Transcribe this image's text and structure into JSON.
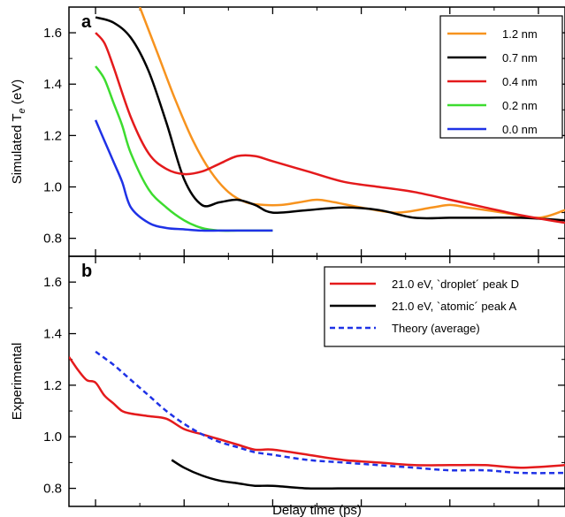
{
  "colors": {
    "orange": "#f7931e",
    "black": "#000000",
    "red": "#e41a1c",
    "green": "#3ddc2f",
    "blue": "#1f32e6",
    "dashed_blue": "#1f32e6"
  },
  "chart_data": [
    {
      "type": "line",
      "panel_label": "a",
      "ylabel": "Simulated T",
      "ylabel_sub": "e",
      "ylabel_unit": " (eV)",
      "xlim": [
        -0.15,
        2.65
      ],
      "ylim": [
        0.73,
        1.7
      ],
      "yticks": [
        "0.8",
        "1.0",
        "1.2",
        "1.4",
        "1.6"
      ],
      "ytick_values": [
        0.8,
        1.0,
        1.2,
        1.4,
        1.6
      ],
      "legend_position": "top-right",
      "series": [
        {
          "name": "1.2 nm",
          "color": "orange",
          "x": [
            0.25,
            0.35,
            0.45,
            0.55,
            0.65,
            0.75,
            0.85,
            0.95,
            1.05,
            1.15,
            1.25,
            1.35,
            1.5,
            1.7,
            1.9,
            2.0,
            2.1,
            2.3,
            2.5,
            2.65
          ],
          "y": [
            1.7,
            1.52,
            1.34,
            1.18,
            1.06,
            0.98,
            0.94,
            0.93,
            0.93,
            0.94,
            0.95,
            0.94,
            0.92,
            0.9,
            0.92,
            0.93,
            0.92,
            0.9,
            0.88,
            0.91
          ]
        },
        {
          "name": "0.7 nm",
          "color": "black",
          "x": [
            0.0,
            0.1,
            0.2,
            0.3,
            0.4,
            0.5,
            0.6,
            0.7,
            0.8,
            0.9,
            1.0,
            1.2,
            1.4,
            1.6,
            1.8,
            2.0,
            2.2,
            2.4,
            2.65
          ],
          "y": [
            1.66,
            1.64,
            1.58,
            1.45,
            1.25,
            1.03,
            0.93,
            0.94,
            0.95,
            0.93,
            0.9,
            0.91,
            0.92,
            0.91,
            0.88,
            0.88,
            0.88,
            0.88,
            0.87
          ]
        },
        {
          "name": "0.4 nm",
          "color": "red",
          "x": [
            0.0,
            0.05,
            0.1,
            0.2,
            0.3,
            0.4,
            0.5,
            0.6,
            0.7,
            0.8,
            0.9,
            1.0,
            1.2,
            1.4,
            1.6,
            1.8,
            2.0,
            2.2,
            2.4,
            2.65
          ],
          "y": [
            1.6,
            1.56,
            1.47,
            1.27,
            1.13,
            1.07,
            1.05,
            1.06,
            1.09,
            1.12,
            1.12,
            1.1,
            1.06,
            1.02,
            1.0,
            0.98,
            0.95,
            0.92,
            0.89,
            0.86
          ]
        },
        {
          "name": "0.2 nm",
          "color": "green",
          "x": [
            0.0,
            0.05,
            0.1,
            0.15,
            0.2,
            0.3,
            0.4,
            0.5,
            0.6,
            0.7,
            0.8,
            0.9,
            1.0
          ],
          "y": [
            1.47,
            1.42,
            1.33,
            1.24,
            1.13,
            0.99,
            0.92,
            0.87,
            0.84,
            0.83,
            0.83,
            0.83,
            0.83
          ]
        },
        {
          "name": "0.0 nm",
          "color": "blue",
          "x": [
            0.0,
            0.05,
            0.1,
            0.15,
            0.2,
            0.3,
            0.4,
            0.5,
            0.6,
            0.7,
            0.8,
            0.9,
            1.0
          ],
          "y": [
            1.26,
            1.18,
            1.1,
            1.02,
            0.92,
            0.86,
            0.84,
            0.835,
            0.83,
            0.83,
            0.83,
            0.83,
            0.83
          ]
        }
      ]
    },
    {
      "type": "line",
      "panel_label": "b",
      "xlabel": "Delay time (ps)",
      "ylabel": "Experimental",
      "xlim": [
        -0.15,
        2.65
      ],
      "ylim": [
        0.73,
        1.7
      ],
      "xticks": [
        "0.0",
        "0.5",
        "1.0",
        "1.5",
        "2.0",
        "2.5"
      ],
      "xtick_values": [
        0.0,
        0.5,
        1.0,
        1.5,
        2.0,
        2.5
      ],
      "yticks": [
        "0.8",
        "1.0",
        "1.2",
        "1.4",
        "1.6"
      ],
      "ytick_values": [
        0.8,
        1.0,
        1.2,
        1.4,
        1.6
      ],
      "legend_position": "top-right",
      "series": [
        {
          "name": "21.0 eV, `droplet´ peak D",
          "color": "red",
          "style": "solid",
          "x": [
            -0.15,
            -0.1,
            -0.05,
            0.0,
            0.05,
            0.1,
            0.15,
            0.2,
            0.3,
            0.4,
            0.5,
            0.6,
            0.7,
            0.8,
            0.9,
            1.0,
            1.2,
            1.4,
            1.6,
            1.8,
            2.0,
            2.2,
            2.4,
            2.65
          ],
          "y": [
            1.31,
            1.26,
            1.22,
            1.21,
            1.16,
            1.13,
            1.1,
            1.09,
            1.08,
            1.07,
            1.03,
            1.01,
            0.99,
            0.97,
            0.95,
            0.95,
            0.93,
            0.91,
            0.9,
            0.89,
            0.89,
            0.89,
            0.88,
            0.89
          ]
        },
        {
          "name": "21.0 eV, `atomic´ peak A",
          "color": "black",
          "style": "solid",
          "x": [
            0.43,
            0.5,
            0.6,
            0.7,
            0.8,
            0.9,
            1.0,
            1.2,
            1.4,
            1.6,
            1.8,
            2.0,
            2.2,
            2.4,
            2.65
          ],
          "y": [
            0.91,
            0.88,
            0.85,
            0.83,
            0.82,
            0.81,
            0.81,
            0.8,
            0.8,
            0.8,
            0.8,
            0.8,
            0.8,
            0.8,
            0.8
          ]
        },
        {
          "name": "Theory (average)",
          "color": "dashed_blue",
          "style": "dashed",
          "x": [
            0.0,
            0.1,
            0.2,
            0.3,
            0.4,
            0.5,
            0.6,
            0.7,
            0.8,
            0.9,
            1.0,
            1.2,
            1.4,
            1.6,
            1.8,
            2.0,
            2.2,
            2.4,
            2.65
          ],
          "y": [
            1.33,
            1.28,
            1.22,
            1.16,
            1.1,
            1.05,
            1.01,
            0.98,
            0.96,
            0.94,
            0.93,
            0.91,
            0.9,
            0.89,
            0.88,
            0.87,
            0.87,
            0.86,
            0.86
          ]
        }
      ]
    }
  ]
}
